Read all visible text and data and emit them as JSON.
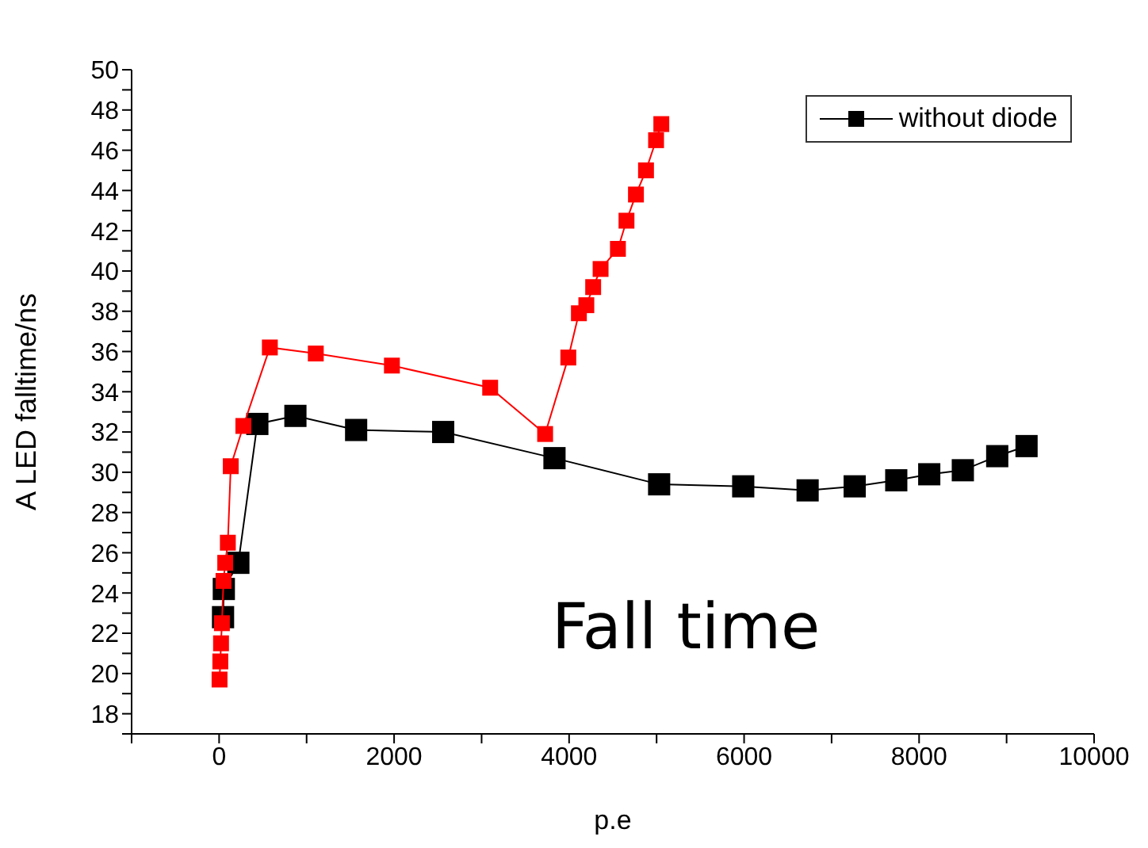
{
  "chart_data": {
    "type": "line",
    "xlabel": "p.e",
    "ylabel": "A LED falltime/ns",
    "annotations": [
      "Fall time"
    ],
    "xlim": [
      -1000,
      10000
    ],
    "xticks": [
      {
        "value": -1000,
        "label": null
      },
      0,
      {
        "value": 1000,
        "label": null
      },
      2000,
      {
        "value": 3000,
        "label": null
      },
      4000,
      {
        "value": 5000,
        "label": null
      },
      6000,
      {
        "value": 7000,
        "label": null
      },
      8000,
      {
        "value": 9000,
        "label": null
      },
      10000
    ],
    "ylim": [
      17,
      50
    ],
    "yticks": [
      {
        "value": 17,
        "label": null
      },
      18,
      {
        "value": 19,
        "label": null
      },
      20,
      {
        "value": 21,
        "label": null
      },
      22,
      {
        "value": 23,
        "label": null
      },
      24,
      {
        "value": 25,
        "label": null
      },
      26,
      {
        "value": 27,
        "label": null
      },
      28,
      {
        "value": 29,
        "label": null
      },
      30,
      {
        "value": 31,
        "label": null
      },
      32,
      {
        "value": 33,
        "label": null
      },
      34,
      {
        "value": 35,
        "label": null
      },
      36,
      {
        "value": 37,
        "label": null
      },
      38,
      {
        "value": 39,
        "label": null
      },
      40,
      {
        "value": 41,
        "label": null
      },
      42,
      {
        "value": 43,
        "label": null
      },
      44,
      {
        "value": 45,
        "label": null
      },
      46,
      {
        "value": 47,
        "label": null
      },
      48,
      {
        "value": 49,
        "label": null
      },
      50
    ],
    "marker": "square",
    "legend": "top right",
    "grid": false,
    "series": [
      {
        "name": "without diode",
        "color": "#000000",
        "x": [
          45,
          54,
          220,
          437,
          872,
          1566,
          2561,
          3833,
          5029,
          5990,
          6726,
          7264,
          7739,
          8116,
          8500,
          8893,
          9228
        ],
        "values": [
          22.8,
          24.2,
          25.5,
          32.4,
          32.8,
          32.1,
          32.0,
          30.7,
          29.4,
          29.3,
          29.1,
          29.3,
          29.6,
          29.9,
          30.1,
          30.8,
          31.3
        ]
      },
      {
        "color": "#ff0000",
        "x": [
          5,
          14,
          22,
          32,
          50,
          70,
          100,
          133,
          277,
          580,
          1105,
          1975,
          3098,
          3726,
          3991,
          4112,
          4197,
          4275,
          4360,
          4558,
          4656,
          4764,
          4879,
          4994,
          5054
        ],
        "values": [
          19.7,
          20.6,
          21.5,
          22.5,
          24.6,
          25.5,
          26.5,
          30.3,
          32.3,
          36.2,
          35.9,
          35.3,
          34.2,
          31.9,
          35.7,
          37.9,
          38.3,
          39.2,
          40.1,
          41.1,
          42.5,
          43.8,
          45.0,
          46.5,
          47.3
        ]
      }
    ]
  }
}
